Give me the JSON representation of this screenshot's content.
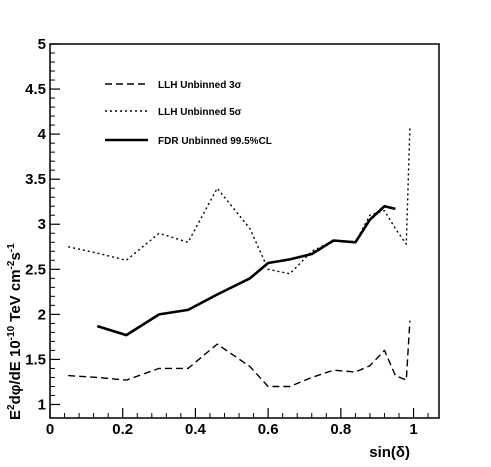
{
  "chart_data": {
    "type": "line",
    "title": "",
    "xlabel": "sin(δ)",
    "ylabel_parts": {
      "a": "E",
      "a_sup": "2",
      "b": "dφ/dE 10",
      "b_sup": "-10",
      "c": " TeV cm",
      "c_sup": "-2",
      "d": "s",
      "d_sup": "-1"
    },
    "xlim": [
      0,
      1.07
    ],
    "ylim": [
      0.85,
      5
    ],
    "x_ticks": [
      0,
      0.2,
      0.4,
      0.6,
      0.8,
      1
    ],
    "x_tick_labels": [
      "0",
      "0.2",
      "0.4",
      "0.6",
      "0.8",
      "1"
    ],
    "y_ticks": [
      1,
      1.5,
      2,
      2.5,
      3,
      3.5,
      4,
      4.5,
      5
    ],
    "y_tick_labels": [
      "1",
      "1.5",
      "2",
      "2.5",
      "3",
      "3.5",
      "4",
      "4.5",
      "5"
    ],
    "grid": false,
    "legend_position": "top-left",
    "series": [
      {
        "name": "LLH Unbinned 3σ",
        "style": "dashed",
        "x": [
          0.05,
          0.13,
          0.21,
          0.3,
          0.38,
          0.46,
          0.55,
          0.6,
          0.66,
          0.72,
          0.78,
          0.84,
          0.88,
          0.92,
          0.95,
          0.98,
          0.99
        ],
        "y": [
          1.32,
          1.3,
          1.27,
          1.4,
          1.4,
          1.67,
          1.42,
          1.2,
          1.2,
          1.3,
          1.38,
          1.36,
          1.43,
          1.6,
          1.32,
          1.27,
          1.93
        ]
      },
      {
        "name": "LLH Unbinned 5σ",
        "style": "dotted",
        "x": [
          0.05,
          0.13,
          0.21,
          0.3,
          0.38,
          0.46,
          0.55,
          0.6,
          0.66,
          0.72,
          0.78,
          0.84,
          0.88,
          0.92,
          0.95,
          0.98,
          0.99
        ],
        "y": [
          2.75,
          2.68,
          2.6,
          2.9,
          2.8,
          3.4,
          2.95,
          2.5,
          2.45,
          2.7,
          2.82,
          2.8,
          3.1,
          3.15,
          2.95,
          2.78,
          4.08
        ]
      },
      {
        "name": "FDR Unbinned 99.5%CL",
        "style": "solid",
        "x": [
          0.13,
          0.21,
          0.3,
          0.38,
          0.46,
          0.55,
          0.6,
          0.66,
          0.72,
          0.78,
          0.84,
          0.88,
          0.92,
          0.95
        ],
        "y": [
          1.87,
          1.77,
          2.0,
          2.05,
          2.22,
          2.4,
          2.57,
          2.61,
          2.67,
          2.82,
          2.8,
          3.05,
          3.2,
          3.17
        ]
      }
    ]
  }
}
